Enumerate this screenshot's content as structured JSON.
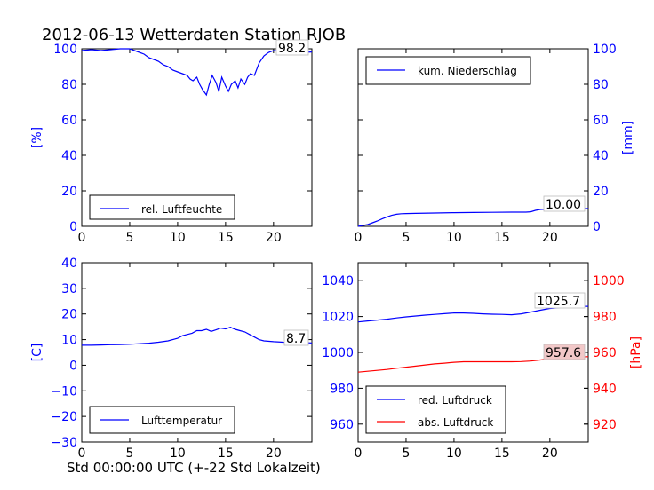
{
  "title": "2012-06-13 Wetterdaten Station RJOB",
  "xlabel": "Std 00:00:00 UTC (+-22 Std Lokalzeit)",
  "colors": {
    "blue": "#0000ff",
    "red": "#ff0000",
    "axis": "#000000"
  },
  "chart_data": [
    {
      "type": "line",
      "ylabel": "[%]",
      "xlim": [
        0,
        24
      ],
      "ylim": [
        0,
        100
      ],
      "xticks": [
        "0",
        "5",
        "10",
        "15",
        "20"
      ],
      "yticks": [
        "0",
        "20",
        "40",
        "60",
        "80",
        "100"
      ],
      "legend": "bottom-left",
      "series": [
        {
          "name": "rel. Luftfeuchte",
          "color": "#0000ff",
          "x": [
            0,
            1,
            2,
            3,
            4,
            5,
            5.5,
            6,
            6.5,
            7,
            7.5,
            8,
            8.5,
            9,
            9.5,
            10,
            10.5,
            11,
            11.3,
            11.6,
            12,
            12.3,
            12.6,
            13,
            13.3,
            13.6,
            14,
            14.3,
            14.6,
            15,
            15.3,
            15.6,
            16,
            16.3,
            16.6,
            17,
            17.3,
            17.6,
            18,
            18.5,
            19,
            19.5,
            20,
            21,
            22,
            23,
            24
          ],
          "y": [
            99,
            99.5,
            99,
            99.5,
            100,
            100,
            99,
            98,
            97,
            95,
            94,
            93,
            91,
            90,
            88,
            87,
            86,
            85,
            83,
            82,
            84,
            80,
            77,
            74,
            80,
            85,
            81,
            76,
            84,
            79,
            76,
            80,
            82,
            78,
            83,
            80,
            84,
            86,
            85,
            92,
            96,
            98,
            99,
            98.5,
            98.5,
            98,
            98.2
          ]
        }
      ],
      "label": "98.2"
    },
    {
      "type": "line",
      "ylabel": "[mm]",
      "xlim": [
        0,
        24
      ],
      "ylim": [
        0,
        100
      ],
      "xticks": [
        "0",
        "5",
        "10",
        "15",
        "20"
      ],
      "yticks": [
        "0",
        "20",
        "40",
        "60",
        "80",
        "100"
      ],
      "legend": "top-left",
      "series": [
        {
          "name": "kum. Niederschlag",
          "color": "#0000ff",
          "x": [
            0,
            0.5,
            1,
            1.5,
            2,
            2.5,
            3,
            3.5,
            4,
            4.5,
            5,
            6,
            8,
            10,
            12,
            14,
            16,
            17.5,
            18,
            18.5,
            19,
            20,
            22,
            24
          ],
          "y": [
            0,
            0.5,
            1,
            2,
            3,
            4.2,
            5.3,
            6.2,
            6.8,
            7.1,
            7.2,
            7.3,
            7.5,
            7.7,
            7.8,
            7.9,
            8,
            8,
            8.2,
            9,
            9.5,
            9.8,
            10,
            10
          ]
        }
      ],
      "label": "10.00"
    },
    {
      "type": "line",
      "ylabel": "[C]",
      "xlim": [
        0,
        24
      ],
      "ylim": [
        -30,
        40
      ],
      "xticks": [
        "0",
        "5",
        "10",
        "15",
        "20"
      ],
      "yticks": [
        "−30",
        "−20",
        "−10",
        "0",
        "10",
        "20",
        "30",
        "40"
      ],
      "legend": "bottom-left",
      "series": [
        {
          "name": "Lufttemperatur",
          "color": "#0000ff",
          "x": [
            0,
            1,
            2,
            3,
            4,
            5,
            6,
            7,
            8,
            9,
            10,
            10.5,
            11,
            11.5,
            12,
            12.5,
            13,
            13.5,
            14,
            14.5,
            15,
            15.5,
            16,
            16.5,
            17,
            17.5,
            18,
            18.5,
            19,
            20,
            21,
            22,
            23,
            24
          ],
          "y": [
            7.8,
            7.8,
            7.9,
            8,
            8.1,
            8.2,
            8.4,
            8.6,
            9,
            9.5,
            10.5,
            11.5,
            12,
            12.5,
            13.5,
            13.5,
            14,
            13.2,
            13.8,
            14.5,
            14.2,
            14.8,
            14,
            13.5,
            13,
            12,
            11,
            10,
            9.5,
            9.2,
            9,
            8.9,
            8.8,
            8.7
          ]
        }
      ],
      "label": "8.7"
    },
    {
      "type": "line",
      "xlim": [
        0,
        24
      ],
      "ylim": [
        950,
        1050
      ],
      "xticks": [
        "0",
        "5",
        "10",
        "15",
        "20"
      ],
      "yticks": [
        "960",
        "980",
        "1000",
        "1020",
        "1040"
      ],
      "legend": "bottom-left",
      "secondary_axis": {
        "ylabel": "[hPa]",
        "ylim": [
          910,
          1010
        ],
        "yticks": [
          "920",
          "940",
          "960",
          "980",
          "1000"
        ]
      },
      "series": [
        {
          "name": "red. Luftdruck",
          "color": "#0000ff",
          "axis": "left",
          "x": [
            0,
            1,
            2,
            3,
            4,
            5,
            6,
            7,
            8,
            9,
            10,
            11,
            12,
            13,
            14,
            15,
            16,
            17,
            18,
            19,
            20,
            21,
            22,
            23,
            24
          ],
          "y": [
            1017,
            1017.5,
            1018,
            1018.5,
            1019.2,
            1019.8,
            1020.3,
            1020.8,
            1021.2,
            1021.6,
            1022,
            1022,
            1021.8,
            1021.5,
            1021.3,
            1021.2,
            1021,
            1021.5,
            1022.5,
            1023.5,
            1024.5,
            1025,
            1025.5,
            1025.7,
            1025.7
          ]
        },
        {
          "name": "abs. Luftdruck",
          "color": "#ff0000",
          "axis": "right",
          "x": [
            0,
            1,
            2,
            3,
            4,
            5,
            6,
            7,
            8,
            9,
            10,
            11,
            12,
            13,
            14,
            15,
            16,
            17,
            18,
            19,
            20,
            21,
            22,
            23,
            24
          ],
          "y": [
            949,
            949.5,
            950,
            950.5,
            951.2,
            951.8,
            952.4,
            953,
            953.6,
            954,
            954.5,
            954.8,
            954.8,
            954.8,
            954.8,
            954.8,
            954.8,
            954.9,
            955.2,
            955.8,
            956.5,
            957,
            957.3,
            957.5,
            957.6
          ]
        }
      ],
      "labels": [
        "1025.7",
        "957.6"
      ]
    }
  ]
}
